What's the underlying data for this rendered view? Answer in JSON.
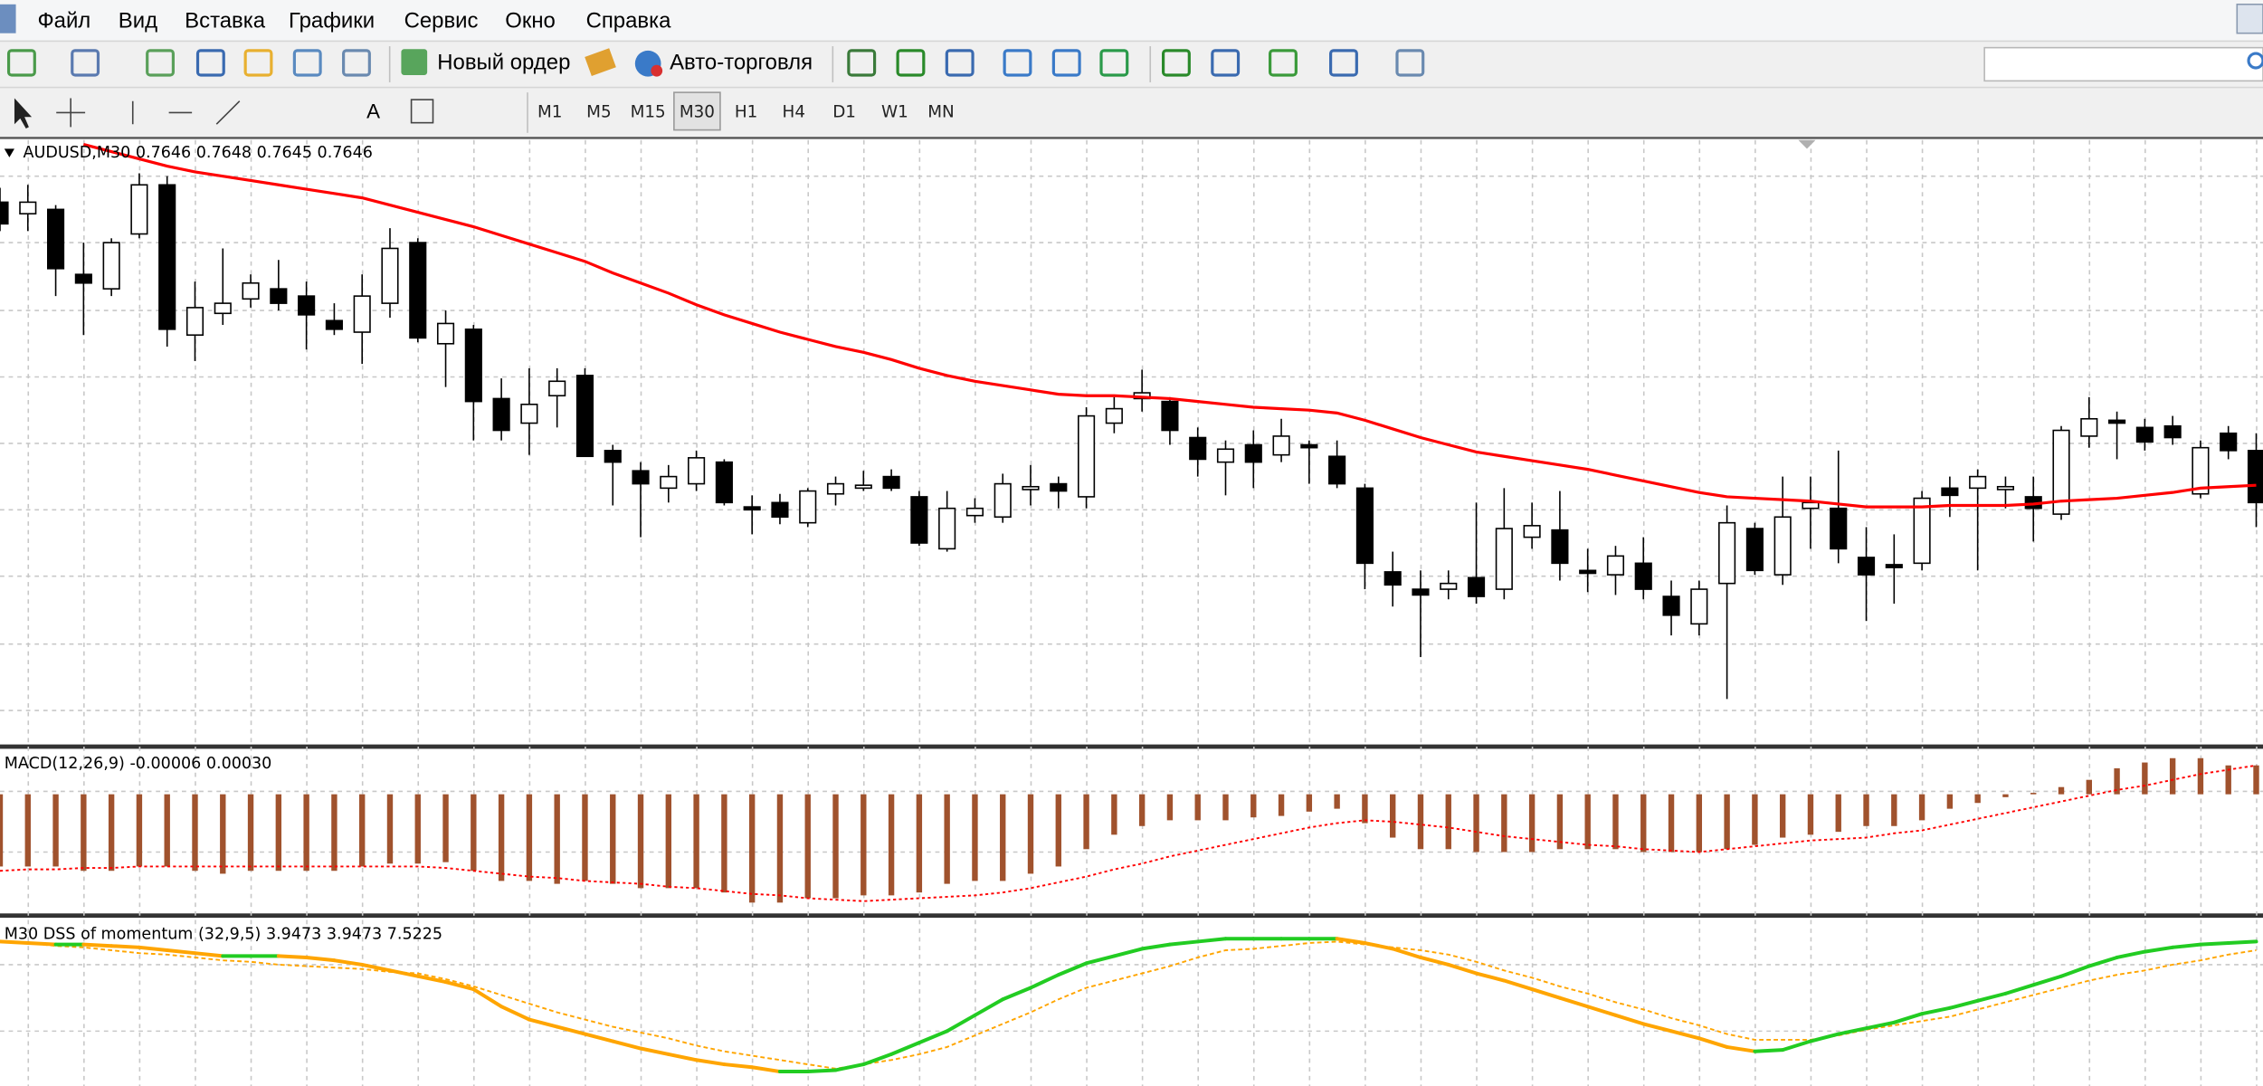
{
  "menu": [
    "Файл",
    "Вид",
    "Вставка",
    "Графики",
    "Сервис",
    "Окно",
    "Справка"
  ],
  "toolbar": {
    "buttons": [
      "Новый ордер",
      "Авто-торговля"
    ],
    "text_tool": "A"
  },
  "timeframes": [
    {
      "label": "M1"
    },
    {
      "label": "M5"
    },
    {
      "label": "M15"
    },
    {
      "label": "M30",
      "pressed": true
    },
    {
      "label": "H1"
    },
    {
      "label": "H4"
    },
    {
      "label": "D1"
    },
    {
      "label": "W1"
    },
    {
      "label": "MN"
    }
  ],
  "chart_data": [
    {
      "type": "candlestick",
      "title": "AUDUSD,M30  0.7646 0.7648 0.7645 0.7646",
      "ylim": [
        0.76293,
        0.76711
      ],
      "up_color": "#ffffff",
      "down_color": "#000000",
      "open": [
        0.76668,
        0.7666,
        0.76663,
        0.76618,
        0.76608,
        0.76646,
        0.7668,
        0.76576,
        0.76591,
        0.76601,
        0.76608,
        0.76603,
        0.76586,
        0.76578,
        0.76598,
        0.7664,
        0.7657,
        0.7658,
        0.76532,
        0.76515,
        0.76534,
        0.76548,
        0.76496,
        0.76482,
        0.7647,
        0.76473,
        0.76488,
        0.76457,
        0.7646,
        0.76446,
        0.76466,
        0.7647,
        0.76478,
        0.76464,
        0.76428,
        0.76451,
        0.7645,
        0.76469,
        0.76473,
        0.76464,
        0.76515,
        0.76532,
        0.7653,
        0.76505,
        0.76488,
        0.765,
        0.76493,
        0.765,
        0.76492,
        0.7647,
        0.76412,
        0.764,
        0.764,
        0.76408,
        0.764,
        0.76436,
        0.76441,
        0.76413,
        0.7641,
        0.76418,
        0.76395,
        0.76376,
        0.76404,
        0.76442,
        0.7641,
        0.76456,
        0.76456,
        0.76422,
        0.76417,
        0.76418,
        0.7647,
        0.7647,
        0.76469,
        0.76464,
        0.76452,
        0.76506,
        0.76517,
        0.76512,
        0.76513,
        0.76466,
        0.76508,
        0.76496
      ],
      "high": [
        0.76678,
        0.7668,
        0.76666,
        0.7664,
        0.76643,
        0.76688,
        0.76686,
        0.76613,
        0.76636,
        0.76618,
        0.76628,
        0.76613,
        0.76598,
        0.76618,
        0.7665,
        0.76643,
        0.76593,
        0.76583,
        0.76546,
        0.76553,
        0.76553,
        0.76553,
        0.765,
        0.76488,
        0.76486,
        0.76496,
        0.7649,
        0.76465,
        0.76466,
        0.7647,
        0.76478,
        0.76482,
        0.76483,
        0.76468,
        0.76468,
        0.76463,
        0.7648,
        0.76486,
        0.76478,
        0.76526,
        0.76533,
        0.76552,
        0.76533,
        0.76512,
        0.76503,
        0.7651,
        0.76518,
        0.76503,
        0.76503,
        0.76473,
        0.76426,
        0.76413,
        0.76413,
        0.7646,
        0.7647,
        0.7646,
        0.76468,
        0.76428,
        0.7643,
        0.76436,
        0.76406,
        0.76406,
        0.76458,
        0.76446,
        0.76478,
        0.76478,
        0.76496,
        0.76443,
        0.76438,
        0.76468,
        0.76478,
        0.76483,
        0.76478,
        0.76478,
        0.76513,
        0.76533,
        0.76523,
        0.76518,
        0.7652,
        0.76503,
        0.76513,
        0.76508
      ],
      "low": [
        0.76648,
        0.76648,
        0.76603,
        0.76576,
        0.76603,
        0.76643,
        0.76568,
        0.76558,
        0.76583,
        0.76595,
        0.76593,
        0.76566,
        0.76576,
        0.76556,
        0.76588,
        0.76571,
        0.7654,
        0.76503,
        0.76503,
        0.76493,
        0.76512,
        0.76492,
        0.76458,
        0.76436,
        0.7646,
        0.76468,
        0.76458,
        0.76438,
        0.76445,
        0.76443,
        0.76458,
        0.76468,
        0.76468,
        0.7643,
        0.76426,
        0.76446,
        0.76446,
        0.76458,
        0.76456,
        0.76456,
        0.76508,
        0.76523,
        0.765,
        0.76478,
        0.76465,
        0.7647,
        0.76488,
        0.76473,
        0.7647,
        0.764,
        0.76388,
        0.76353,
        0.76393,
        0.7639,
        0.76393,
        0.76428,
        0.76406,
        0.76398,
        0.76396,
        0.76393,
        0.76368,
        0.76368,
        0.76324,
        0.7641,
        0.76403,
        0.76428,
        0.76418,
        0.76378,
        0.7639,
        0.76413,
        0.7645,
        0.76413,
        0.76456,
        0.76433,
        0.76448,
        0.76498,
        0.7649,
        0.76496,
        0.765,
        0.76463,
        0.7649,
        0.76443
      ],
      "close": [
        0.76653,
        0.76668,
        0.76622,
        0.76612,
        0.7664,
        0.7668,
        0.7658,
        0.76595,
        0.76598,
        0.76612,
        0.76598,
        0.7659,
        0.7658,
        0.76603,
        0.76636,
        0.76574,
        0.76584,
        0.7653,
        0.7651,
        0.76528,
        0.76544,
        0.76492,
        0.76488,
        0.76473,
        0.76478,
        0.76491,
        0.7646,
        0.76455,
        0.7645,
        0.76468,
        0.76473,
        0.76472,
        0.7647,
        0.76432,
        0.76456,
        0.76456,
        0.76473,
        0.76471,
        0.76468,
        0.7652,
        0.76525,
        0.76536,
        0.7651,
        0.7649,
        0.76497,
        0.76488,
        0.76506,
        0.76498,
        0.76473,
        0.76418,
        0.76403,
        0.76396,
        0.76404,
        0.76395,
        0.76442,
        0.76444,
        0.76418,
        0.76411,
        0.76423,
        0.764,
        0.76382,
        0.764,
        0.76446,
        0.76413,
        0.7645,
        0.7646,
        0.76428,
        0.7641,
        0.76415,
        0.76463,
        0.76465,
        0.76478,
        0.76471,
        0.76456,
        0.7651,
        0.76518,
        0.76515,
        0.76502,
        0.76505,
        0.76498,
        0.76496,
        0.7646
      ],
      "overlay": {
        "color": "#ff0000",
        "values": [
          null,
          null,
          null,
          0.76708,
          0.76703,
          0.76698,
          0.76693,
          0.76689,
          0.76686,
          0.76683,
          0.7668,
          0.76677,
          0.76674,
          0.76671,
          0.76666,
          0.76661,
          0.76656,
          0.76651,
          0.76645,
          0.76639,
          0.76633,
          0.76627,
          0.76619,
          0.76612,
          0.76605,
          0.76597,
          0.7659,
          0.76584,
          0.76578,
          0.76573,
          0.76568,
          0.76564,
          0.76559,
          0.76553,
          0.76548,
          0.76544,
          0.76541,
          0.76538,
          0.76535,
          0.76534,
          0.76534,
          0.76533,
          0.76532,
          0.7653,
          0.76528,
          0.76526,
          0.76525,
          0.76524,
          0.76522,
          0.76517,
          0.76511,
          0.76505,
          0.765,
          0.76495,
          0.76492,
          0.76489,
          0.76486,
          0.76483,
          0.76479,
          0.76475,
          0.76471,
          0.76467,
          0.76464,
          0.76463,
          0.76462,
          0.76461,
          0.76459,
          0.76457,
          0.76457,
          0.76457,
          0.76458,
          0.76458,
          0.76458,
          0.76459,
          0.76461,
          0.76462,
          0.76463,
          0.76465,
          0.76467,
          0.7647,
          0.76471,
          0.76472
        ]
      }
    },
    {
      "type": "bar",
      "title": "MACD(12,26,9) -0.00006 0.00030",
      "ylim": [
        -0.00082,
        0.0003
      ],
      "color": "#a0522d",
      "values": [
        -0.0005,
        -0.0005,
        -0.0005,
        -0.00053,
        -0.00053,
        -0.0005,
        -0.0005,
        -0.00053,
        -0.00055,
        -0.00053,
        -0.00053,
        -0.00053,
        -0.00053,
        -0.0005,
        -0.00048,
        -0.00048,
        -0.00047,
        -0.00053,
        -0.0006,
        -0.0006,
        -0.00062,
        -0.0006,
        -0.00062,
        -0.00065,
        -0.00065,
        -0.00065,
        -0.00068,
        -0.00075,
        -0.00075,
        -0.00072,
        -0.00072,
        -0.0007,
        -0.0007,
        -0.00068,
        -0.00062,
        -0.0006,
        -0.0006,
        -0.00055,
        -0.0005,
        -0.00038,
        -0.00028,
        -0.00022,
        -0.00018,
        -0.00018,
        -0.00018,
        -0.00016,
        -0.00015,
        -0.00012,
        -0.0001,
        -0.0002,
        -0.0003,
        -0.00038,
        -0.00038,
        -0.0004,
        -0.0004,
        -0.0004,
        -0.00038,
        -0.00038,
        -0.00038,
        -0.0004,
        -0.0004,
        -0.0004,
        -0.00038,
        -0.00035,
        -0.0003,
        -0.00028,
        -0.00026,
        -0.00022,
        -0.00022,
        -0.00018,
        -0.0001,
        -6e-05,
        -2e-05,
        1e-05,
        5e-05,
        0.0001,
        0.00018,
        0.00022,
        0.00025,
        0.00025,
        0.0002,
        0.0002
      ],
      "signal": {
        "color": "#ff0000",
        "dashed": true,
        "values": [
          -0.00053,
          -0.00052,
          -0.00052,
          -0.00051,
          -0.00051,
          -0.0005,
          -0.0005,
          -0.0005,
          -0.0005,
          -0.0005,
          -0.0005,
          -0.0005,
          -0.0005,
          -0.0005,
          -0.0005,
          -0.0005,
          -0.00051,
          -0.00053,
          -0.00055,
          -0.00057,
          -0.00058,
          -0.0006,
          -0.00061,
          -0.00062,
          -0.00064,
          -0.00065,
          -0.00067,
          -0.00069,
          -0.0007,
          -0.00072,
          -0.00073,
          -0.00074,
          -0.00073,
          -0.00072,
          -0.00071,
          -0.0007,
          -0.00068,
          -0.00065,
          -0.00061,
          -0.00057,
          -0.00052,
          -0.00048,
          -0.00043,
          -0.00039,
          -0.00035,
          -0.00031,
          -0.00027,
          -0.00023,
          -0.0002,
          -0.00018,
          -0.00019,
          -0.00021,
          -0.00023,
          -0.00026,
          -0.00029,
          -0.00031,
          -0.00033,
          -0.00035,
          -0.00036,
          -0.00038,
          -0.00039,
          -0.0004,
          -0.00038,
          -0.00036,
          -0.00034,
          -0.00032,
          -0.00031,
          -0.0003,
          -0.00027,
          -0.00025,
          -0.00021,
          -0.00017,
          -0.00013,
          -9e-05,
          -5e-05,
          -1e-05,
          3e-05,
          6e-05,
          0.0001,
          0.00014,
          0.00017,
          0.0002
        ]
      }
    },
    {
      "type": "line",
      "title": "M30 DSS of momentum (32,9,5) 3.9473 3.9473 7.5225",
      "ylim": [
        -7,
        108
      ],
      "up_color": "#22cc22",
      "down_color": "#ffa500",
      "values": [
        93,
        92,
        91,
        91,
        90,
        89,
        87,
        85,
        83,
        83,
        83,
        82,
        80,
        77,
        73,
        69,
        65,
        60,
        48,
        39,
        34,
        29,
        24,
        19,
        15,
        11,
        8,
        6,
        3,
        3,
        4,
        8,
        15,
        23,
        31,
        42,
        53,
        61,
        70,
        78,
        83,
        88,
        91,
        93,
        95,
        95,
        95,
        95,
        95,
        92,
        88,
        82,
        77,
        71,
        66,
        60,
        54,
        48,
        42,
        36,
        31,
        26,
        20,
        17,
        18,
        24,
        29,
        33,
        37,
        43,
        47,
        52,
        57,
        63,
        69,
        76,
        82,
        86,
        89,
        91,
        92,
        93
      ],
      "signal": {
        "color": "#ffa500",
        "dashed": true,
        "values": [
          93,
          92,
          90,
          89,
          87,
          85,
          84,
          82,
          80,
          79,
          77,
          76,
          75,
          74,
          72,
          71,
          67,
          62,
          56,
          50,
          44,
          39,
          34,
          30,
          26,
          21,
          17,
          14,
          11,
          8,
          5,
          8,
          11,
          15,
          20,
          28,
          36,
          44,
          53,
          61,
          66,
          71,
          76,
          82,
          87,
          88,
          90,
          92,
          93,
          91,
          89,
          87,
          84,
          79,
          73,
          68,
          62,
          57,
          51,
          46,
          40,
          35,
          29,
          25,
          25,
          25,
          28,
          32,
          35,
          38,
          41,
          46,
          51,
          56,
          61,
          66,
          70,
          73,
          77,
          80,
          84,
          87
        ]
      }
    }
  ]
}
